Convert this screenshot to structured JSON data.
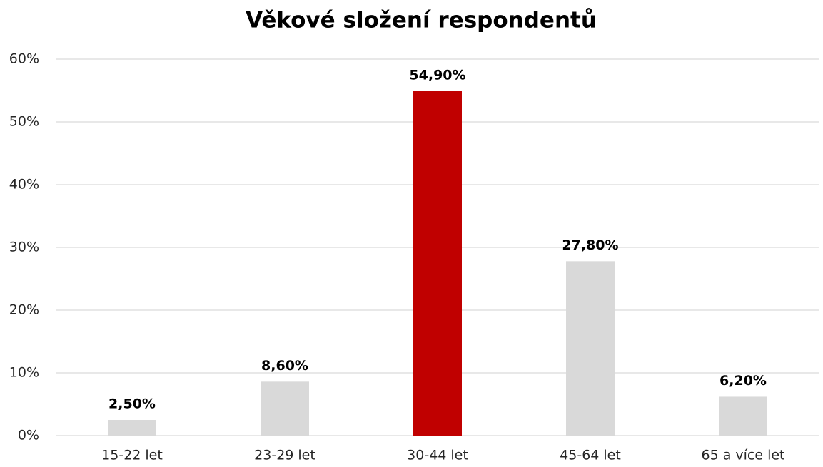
{
  "chart_data": {
    "type": "bar",
    "title": "Věkové složení respondentů",
    "categories": [
      "15-22 let",
      "23-29 let",
      "30-44 let",
      "45-64 let",
      "65 a více let"
    ],
    "values": [
      2.5,
      8.6,
      54.9,
      27.8,
      6.2
    ],
    "value_labels": [
      "2,50%",
      "8,60%",
      "54,90%",
      "27,80%",
      "6,20%"
    ],
    "colors": [
      "#d9d9d9",
      "#d9d9d9",
      "#c00000",
      "#d9d9d9",
      "#d9d9d9"
    ],
    "ylim": [
      0,
      60
    ],
    "yticks": [
      {
        "value": 0,
        "label": "0%"
      },
      {
        "value": 10,
        "label": "10%"
      },
      {
        "value": 20,
        "label": "20%"
      },
      {
        "value": 30,
        "label": "30%"
      },
      {
        "value": 40,
        "label": "40%"
      },
      {
        "value": 50,
        "label": "50%"
      },
      {
        "value": 60,
        "label": "60%"
      }
    ],
    "grid": true
  }
}
